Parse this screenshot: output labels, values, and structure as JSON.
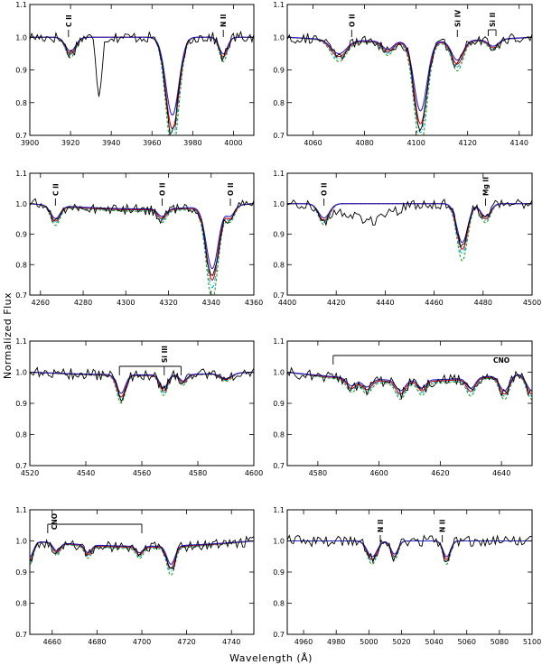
{
  "figure": {
    "xlabel": "Wavelength (Å)",
    "ylabel": "Normalized Flux"
  },
  "chart_data": [
    {
      "type": "line",
      "xlim": [
        3900,
        4010
      ],
      "ylim": [
        0.7,
        1.1
      ],
      "xticks": [
        3900,
        3920,
        3940,
        3960,
        3980,
        4000
      ],
      "yticks": [
        0.7,
        0.8,
        0.9,
        1.0,
        1.1
      ],
      "line_ids": [
        {
          "label": "C II",
          "x": 3919
        },
        {
          "label": "N II",
          "x": 3995
        }
      ],
      "cont_dip": 0.0,
      "features": [
        {
          "c": 3920,
          "d": 0.05,
          "w": 2.5
        },
        {
          "c": 3970,
          "d": 0.28,
          "w": 3.2
        },
        {
          "c": 3995,
          "d": 0.06,
          "w": 2
        }
      ],
      "obs_extra": [
        {
          "c": 3934,
          "d": 0.17,
          "w": 1.3
        },
        {
          "c": 3968.5,
          "d": 0.04,
          "w": 1.2
        }
      ]
    },
    {
      "type": "line",
      "xlim": [
        4050,
        4145
      ],
      "ylim": [
        0.7,
        1.1
      ],
      "xticks": [
        4060,
        4080,
        4100,
        4120,
        4140
      ],
      "yticks": [
        0.7,
        0.8,
        0.9,
        1.0,
        1.1
      ],
      "line_ids": [
        {
          "label": "O II",
          "x": 4075
        },
        {
          "label": "Si IV",
          "x": 4116
        },
        {
          "label": "Si II",
          "x": 4128,
          "x2": 4131
        }
      ],
      "cont_dip": 0.015,
      "features": [
        {
          "c": 4070,
          "d": 0.05,
          "w": 3
        },
        {
          "c": 4089,
          "d": 0.03,
          "w": 2
        },
        {
          "c": 4101.7,
          "d": 0.25,
          "w": 2.5
        },
        {
          "c": 4116,
          "d": 0.07,
          "w": 2.2
        },
        {
          "c": 4130,
          "d": 0.025,
          "w": 2
        }
      ],
      "obs_extra": [
        {
          "c": 4101.7,
          "d": 0.03,
          "w": 1.2
        }
      ]
    },
    {
      "type": "line",
      "xlim": [
        4255,
        4360
      ],
      "ylim": [
        0.7,
        1.1
      ],
      "xticks": [
        4260,
        4280,
        4300,
        4320,
        4340,
        4360
      ],
      "yticks": [
        0.7,
        0.8,
        0.9,
        1.0,
        1.1
      ],
      "line_ids": [
        {
          "label": "C II",
          "x": 4267
        },
        {
          "label": "O II",
          "x": 4317
        },
        {
          "label": "O II",
          "x": 4349
        }
      ],
      "cont_dip": 0.02,
      "features": [
        {
          "c": 4267,
          "d": 0.05,
          "w": 2.2
        },
        {
          "c": 4317,
          "d": 0.03,
          "w": 2
        },
        {
          "c": 4340.5,
          "d": 0.24,
          "w": 2.8
        },
        {
          "c": 4349,
          "d": 0.04,
          "w": 2
        }
      ],
      "obs_extra": []
    },
    {
      "type": "line",
      "xlim": [
        4400,
        4500
      ],
      "ylim": [
        0.7,
        1.1
      ],
      "xticks": [
        4400,
        4420,
        4440,
        4460,
        4480,
        4500
      ],
      "yticks": [
        0.7,
        0.8,
        0.9,
        1.0,
        1.1
      ],
      "line_ids": [
        {
          "label": "O II",
          "x": 4415
        },
        {
          "label": "Mg II",
          "x": 4481
        }
      ],
      "cont_dip": 0.0,
      "features": [
        {
          "c": 4415,
          "d": 0.055,
          "w": 2.2
        },
        {
          "c": 4471.5,
          "d": 0.15,
          "w": 2.2
        },
        {
          "c": 4481,
          "d": 0.05,
          "w": 2
        }
      ],
      "obs_extra": [
        {
          "c": 4433,
          "d": 0.055,
          "w": 9
        }
      ]
    },
    {
      "type": "line",
      "xlim": [
        4520,
        4600
      ],
      "ylim": [
        0.7,
        1.1
      ],
      "xticks": [
        4520,
        4540,
        4560,
        4580,
        4600
      ],
      "yticks": [
        0.7,
        0.8,
        0.9,
        1.0,
        1.1
      ],
      "line_ids": [
        {
          "label": "Si III",
          "x": 4552,
          "x2": 4574,
          "mid": 4568
        }
      ],
      "cont_dip": 0.01,
      "features": [
        {
          "c": 4552.6,
          "d": 0.07,
          "w": 1.5
        },
        {
          "c": 4567.8,
          "d": 0.05,
          "w": 1.4
        },
        {
          "c": 4574.8,
          "d": 0.025,
          "w": 1.3
        },
        {
          "c": 4590,
          "d": 0.02,
          "w": 2
        }
      ],
      "obs_extra": []
    },
    {
      "type": "line",
      "xlim": [
        4570,
        4650
      ],
      "ylim": [
        0.7,
        1.1
      ],
      "xticks": [
        4580,
        4600,
        4620,
        4640
      ],
      "yticks": [
        0.7,
        0.8,
        0.9,
        1.0,
        1.1
      ],
      "line_ids": [
        {
          "label": "CNO",
          "x": 4585,
          "x2": 4650,
          "mid": 4640,
          "bar": true
        }
      ],
      "cont_dip": 0.03,
      "features": [
        {
          "c": 4591,
          "d": 0.03,
          "w": 1.5
        },
        {
          "c": 4596,
          "d": 0.03,
          "w": 1.5
        },
        {
          "c": 4607,
          "d": 0.04,
          "w": 1.5
        },
        {
          "c": 4614,
          "d": 0.03,
          "w": 1.3
        },
        {
          "c": 4630,
          "d": 0.04,
          "w": 1.4
        },
        {
          "c": 4641,
          "d": 0.06,
          "w": 1.6
        },
        {
          "c": 4650,
          "d": 0.07,
          "w": 1.8
        }
      ],
      "obs_extra": []
    },
    {
      "type": "line",
      "xlim": [
        4650,
        4750
      ],
      "ylim": [
        0.7,
        1.1
      ],
      "xticks": [
        4660,
        4680,
        4700,
        4720,
        4740
      ],
      "yticks": [
        0.7,
        0.8,
        0.9,
        1.0,
        1.1
      ],
      "line_ids": [
        {
          "label": "CNO",
          "x": 4658,
          "x2": 4700,
          "mid": 4662,
          "bar": true
        }
      ],
      "cont_dip": 0.02,
      "features": [
        {
          "c": 4650,
          "d": 0.06,
          "w": 1.6
        },
        {
          "c": 4662,
          "d": 0.03,
          "w": 1.5
        },
        {
          "c": 4676,
          "d": 0.03,
          "w": 1.5
        },
        {
          "c": 4699,
          "d": 0.025,
          "w": 1.5
        },
        {
          "c": 4713,
          "d": 0.07,
          "w": 1.8
        }
      ],
      "obs_extra": []
    },
    {
      "type": "line",
      "xlim": [
        4950,
        5100
      ],
      "ylim": [
        0.7,
        1.1
      ],
      "xticks": [
        4960,
        4980,
        5000,
        5020,
        5040,
        5060,
        5080,
        5100
      ],
      "yticks": [
        0.7,
        0.8,
        0.9,
        1.0,
        1.1
      ],
      "line_ids": [
        {
          "label": "N II",
          "x": 5007
        },
        {
          "label": "N II",
          "x": 5045
        }
      ],
      "cont_dip": 0.0,
      "features": [
        {
          "c": 5002,
          "d": 0.06,
          "w": 3
        },
        {
          "c": 5015.7,
          "d": 0.05,
          "w": 2.2
        },
        {
          "c": 5047.7,
          "d": 0.06,
          "w": 2.2
        }
      ],
      "obs_extra": []
    }
  ]
}
